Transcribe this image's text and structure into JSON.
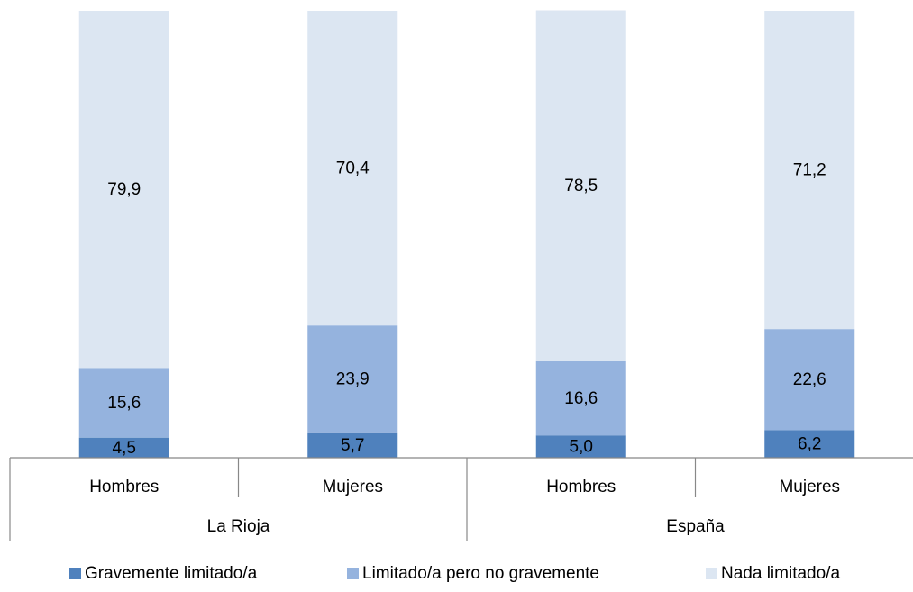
{
  "chart_data": {
    "type": "stacked_bar",
    "categories": [
      "Hombres",
      "Mujeres",
      "Hombres",
      "Mujeres"
    ],
    "groups": [
      "La Rioja",
      "España"
    ],
    "ylim": [
      0,
      100
    ],
    "legend": "bottom",
    "series": [
      {
        "name": "Gravemente limitado/a",
        "color": "#4f81bd",
        "values": [
          4.5,
          5.7,
          5.0,
          6.2
        ],
        "value_labels": [
          "4,5",
          "5,7",
          "5,0",
          "6,2"
        ]
      },
      {
        "name": "Limitado/a pero no gravemente",
        "color": "#95b3de",
        "values": [
          15.6,
          23.9,
          16.6,
          22.6
        ],
        "value_labels": [
          "15,6",
          "23,9",
          "16,6",
          "22,6"
        ]
      },
      {
        "name": "Nada limitado/a",
        "color": "#dce6f2",
        "values": [
          79.9,
          70.4,
          78.5,
          71.2
        ],
        "value_labels": [
          "79,9",
          "70,4",
          "78,5",
          "71,2"
        ]
      }
    ]
  }
}
